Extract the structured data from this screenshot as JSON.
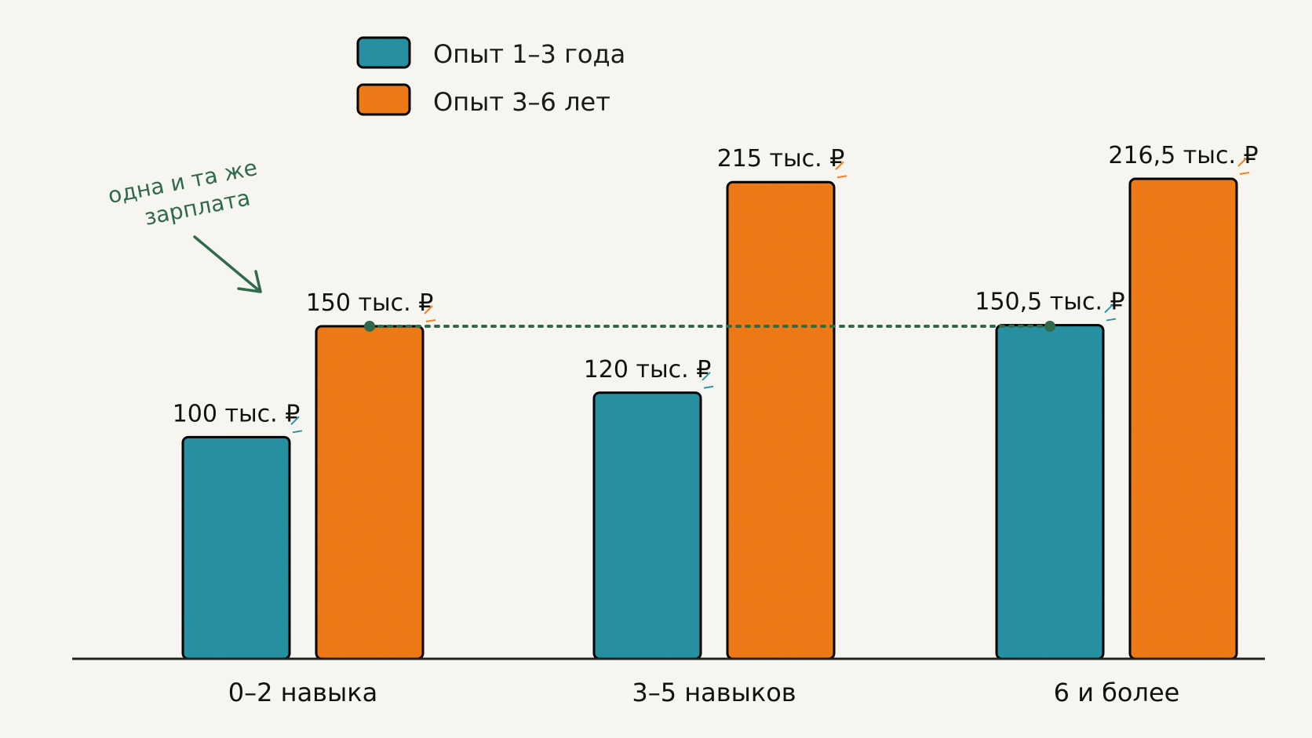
{
  "chart_data": {
    "type": "bar",
    "categories": [
      "0–2 навыка",
      "3–5 навыков",
      "6 и более"
    ],
    "series": [
      {
        "name": "Опыт 1–3 года",
        "color": "#2a96a8",
        "values": [
          100,
          120,
          150.5
        ]
      },
      {
        "name": "Опыт 3–6 лет",
        "color": "#f77f1e",
        "values": [
          150,
          215,
          216.5
        ]
      }
    ],
    "data_labels": [
      [
        "100 тыс. ₽",
        "120 тыс. ₽",
        "150,5 тыс. ₽"
      ],
      [
        "150 тыс. ₽",
        "215 тыс. ₽",
        "216,5 тыс. ₽"
      ]
    ],
    "ylim": [
      0,
      230
    ],
    "legend_position": "top-left",
    "grid": false,
    "annotation": {
      "text_lines": [
        "одна и та же",
        "зарплата"
      ],
      "color": "#2f6b4a",
      "reference_value": 150
    }
  }
}
